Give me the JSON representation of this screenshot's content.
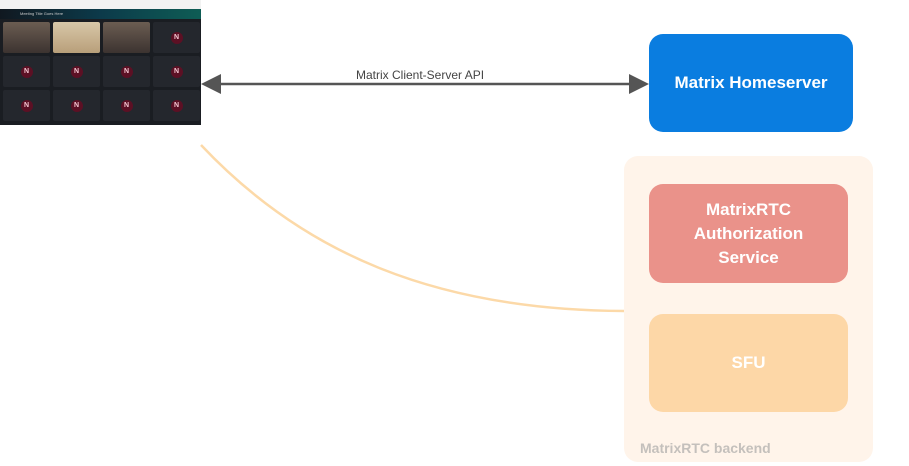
{
  "client": {
    "window_title": "Meeting Title Goes Here",
    "avatar_letter": "N",
    "tiles": [
      "video",
      "video",
      "video",
      "N",
      "N",
      "N",
      "N",
      "N",
      "N",
      "N",
      "N",
      "N"
    ]
  },
  "edges": {
    "client_server_api": "Matrix Client-Server API"
  },
  "nodes": {
    "homeserver": "Matrix Homeserver",
    "auth_service": "MatrixRTC Authorization Service",
    "sfu": "SFU",
    "backend_group": "MatrixRTC backend"
  },
  "colors": {
    "homeserver": "#0a7de0",
    "backend_bg": "#fff4ea",
    "auth": "#ea928a",
    "sfu": "#fdd7a7",
    "curve": "#fcd9a8",
    "arrow": "#555555",
    "group_label": "#c4c0bc"
  }
}
